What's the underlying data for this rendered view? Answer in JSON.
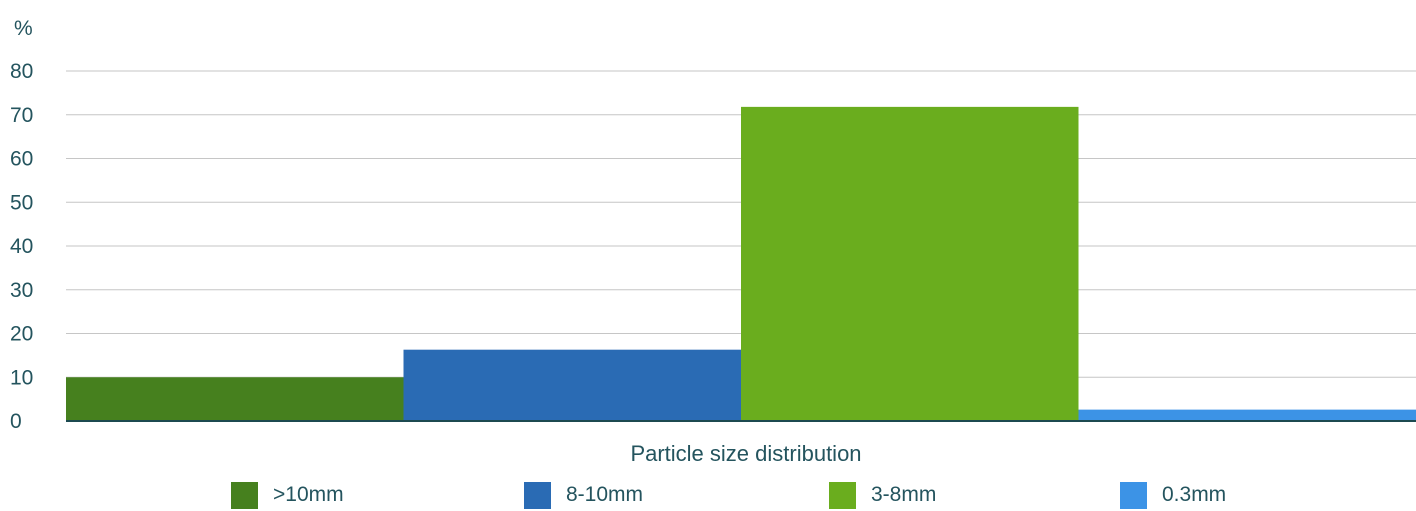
{
  "chart_data": {
    "type": "bar",
    "categories": [
      ">10mm",
      "8-10mm",
      "3-8mm",
      "0.3mm"
    ],
    "values": [
      10,
      16.3,
      71.8,
      2.6
    ],
    "colors": [
      "#46801e",
      "#2a6bb4",
      "#6aad1e",
      "#3c93e6"
    ],
    "title": "",
    "xlabel": "Particle size distribution",
    "ylabel": "%",
    "ylim": [
      0,
      80
    ],
    "yticks": [
      0,
      10,
      20,
      30,
      40,
      50,
      60,
      70,
      80
    ],
    "grid": true,
    "legend_position": "bottom"
  },
  "style": {
    "text_color": "#24545e",
    "grid_color": "#c6c6c6",
    "axis_color": "#1c4a50"
  }
}
